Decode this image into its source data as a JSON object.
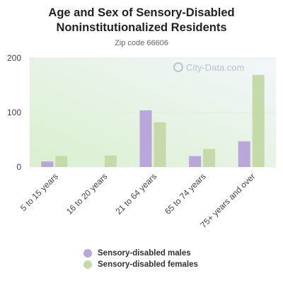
{
  "chart_data": {
    "type": "bar",
    "title": "Age and Sex of Sensory-Disabled Noninstitutionalized Residents",
    "title_lines": [
      "Age and Sex of Sensory-Disabled",
      "Noninstitutionalized Residents"
    ],
    "subtitle": "Zip code 66606",
    "categories": [
      "5 to 15 years",
      "16 to 20 years",
      "21 to 64 years",
      "65 to 74 years",
      "75+ years and over"
    ],
    "series": [
      {
        "name": "Sensory-disabled males",
        "color": "#b9a7d9",
        "values": [
          10,
          0,
          104,
          20,
          47
        ]
      },
      {
        "name": "Sensory-disabled females",
        "color": "#c6d9a8",
        "values": [
          20,
          21,
          82,
          33,
          169
        ]
      }
    ],
    "ylim": [
      0,
      200
    ],
    "yticks": [
      0,
      100,
      200
    ],
    "grid": true,
    "legend_position": "bottom",
    "watermark": "City-Data.com"
  }
}
